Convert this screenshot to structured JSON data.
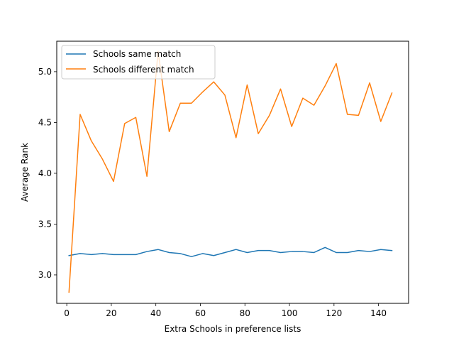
{
  "chart_data": {
    "type": "line",
    "title": "",
    "xlabel": "Extra Schools in preference lists",
    "ylabel": "Average Rank",
    "xlim": [
      -4.5,
      153.5
    ],
    "ylim": [
      2.72,
      5.3
    ],
    "xticks": [
      0,
      20,
      40,
      60,
      80,
      100,
      120,
      140
    ],
    "yticks": [
      3.0,
      3.5,
      4.0,
      4.5,
      5.0
    ],
    "ytick_labels": [
      "3.0",
      "3.5",
      "4.0",
      "4.5",
      "5.0"
    ],
    "grid": false,
    "legend_position": "top-left",
    "x": [
      1,
      6,
      11,
      16,
      21,
      26,
      31,
      36,
      41,
      46,
      51,
      56,
      61,
      66,
      71,
      76,
      81,
      86,
      91,
      96,
      101,
      106,
      111,
      116,
      121,
      126,
      131,
      136,
      141,
      146
    ],
    "series": [
      {
        "name": "Schools same match",
        "color": "#1f77b4",
        "values": [
          3.19,
          3.21,
          3.2,
          3.21,
          3.2,
          3.2,
          3.2,
          3.23,
          3.25,
          3.22,
          3.21,
          3.18,
          3.21,
          3.19,
          3.22,
          3.25,
          3.22,
          3.24,
          3.24,
          3.22,
          3.23,
          3.23,
          3.22,
          3.27,
          3.22,
          3.22,
          3.24,
          3.23,
          3.25,
          3.24
        ]
      },
      {
        "name": "Schools different match",
        "color": "#ff7f0e",
        "values": [
          2.83,
          4.58,
          4.32,
          4.14,
          3.92,
          4.49,
          4.55,
          3.97,
          5.2,
          4.41,
          4.69,
          4.69,
          4.8,
          4.9,
          4.77,
          4.35,
          4.87,
          4.39,
          4.57,
          4.83,
          4.46,
          4.74,
          4.67,
          4.86,
          5.08,
          4.58,
          4.57,
          4.89,
          4.51,
          4.79
        ]
      }
    ]
  }
}
